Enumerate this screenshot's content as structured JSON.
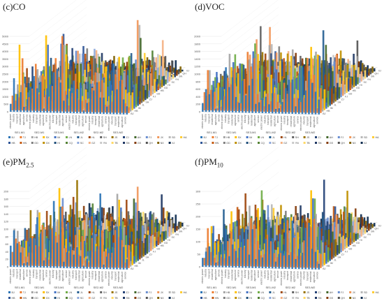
{
  "regions": [
    "BJ",
    "TJ",
    "HB",
    "SX",
    "IM",
    "LN",
    "JL",
    "HL",
    "SH",
    "JS",
    "ZJ",
    "AH",
    "FJ",
    "JX",
    "SD",
    "HA",
    "HB",
    "HN",
    "GD",
    "GX",
    "HI",
    "CQ",
    "SC",
    "GZ",
    "YN",
    "TB",
    "SN",
    "GS",
    "QH",
    "NX",
    "XJ"
  ],
  "region_colors": [
    "#2e75b6",
    "#ed7d31",
    "#a5a5a5",
    "#ffc000",
    "#4472c4",
    "#70ad47",
    "#255e91",
    "#9e480e",
    "#636363",
    "#997300",
    "#264478",
    "#43682b",
    "#698ed0",
    "#f1975a",
    "#b7b7b7",
    "#ffcd33",
    "#2f5597",
    "#c55a11",
    "#7f7f7f",
    "#bf9000",
    "#1f4e79",
    "#548235",
    "#8faadc",
    "#f4b183",
    "#c9c9c9",
    "#ffd966",
    "#203864",
    "#843c0c",
    "#525252",
    "#7f6000",
    "#0d2b4f"
  ],
  "depth_labels": [
    "BJ",
    "HB",
    "IM",
    "JL",
    "SH",
    "ZJ",
    "FJ",
    "SD",
    "HB",
    "GD",
    "HI",
    "SC",
    "YN",
    "SN",
    "QH",
    "XJ"
  ],
  "sectors": [
    "electric power",
    "industry",
    "transport",
    "residential",
    "agriculture",
    "service"
  ],
  "periods": [
    "SE1-M1",
    "SE2-M1",
    "SE3-M1",
    "SE1-M2",
    "SE2-M2",
    "SE3-M2"
  ],
  "chart_data": [
    {
      "type": "bar",
      "title": "(c)CO",
      "title_sub": "",
      "ylim": [
        0,
        5000
      ],
      "yticks": [
        0,
        500,
        1000,
        1500,
        2000,
        2500,
        3000,
        3500,
        4000,
        4500,
        5000
      ]
    },
    {
      "type": "bar",
      "title": "(d)VOC",
      "title_sub": "",
      "ylim": [
        0,
        2000
      ],
      "yticks": [
        0,
        200,
        400,
        600,
        800,
        1000,
        1200,
        1400,
        1600,
        1800,
        2000
      ]
    },
    {
      "type": "bar",
      "title": "(e)PM",
      "title_sub": "2.5",
      "ylim": [
        0,
        200
      ],
      "yticks": [
        0,
        20,
        40,
        60,
        80,
        100,
        120,
        140,
        160,
        180,
        200
      ]
    },
    {
      "type": "bar",
      "title": "(f)PM",
      "title_sub": "10",
      "ylim": [
        0,
        300
      ],
      "yticks": [
        0,
        50,
        100,
        150,
        200,
        250,
        300
      ]
    }
  ]
}
